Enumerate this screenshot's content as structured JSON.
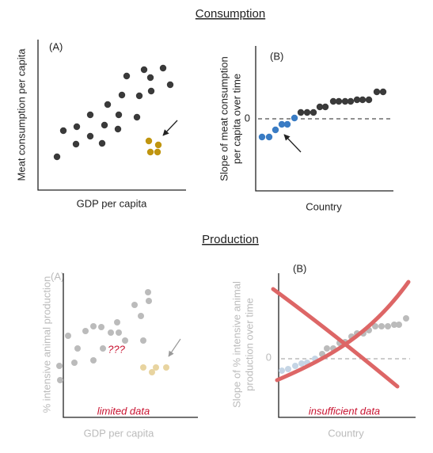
{
  "consumption": {
    "title": "Consumption",
    "panel_a": {
      "label": "(A)",
      "y_axis": "Meat consumption per capita",
      "x_axis": "GDP per capita"
    },
    "panel_b": {
      "label": "(B)",
      "y_axis_lines": [
        "Slope of meat consumption",
        "per capita over time"
      ],
      "zero_tick": 0,
      "x_axis": "Country"
    }
  },
  "production": {
    "title": "Production",
    "panel_a": {
      "label": "(A)",
      "y_axis": "% intensive animal production",
      "x_axis": "GDP per capita",
      "overlay": "???",
      "note": "limited data"
    },
    "panel_b": {
      "label": "(B)",
      "y_axis_lines": [
        "Slope of % intensive animal",
        "production over time"
      ],
      "zero_tick": 0,
      "x_axis": "Country",
      "note": "insufficient data"
    }
  }
}
